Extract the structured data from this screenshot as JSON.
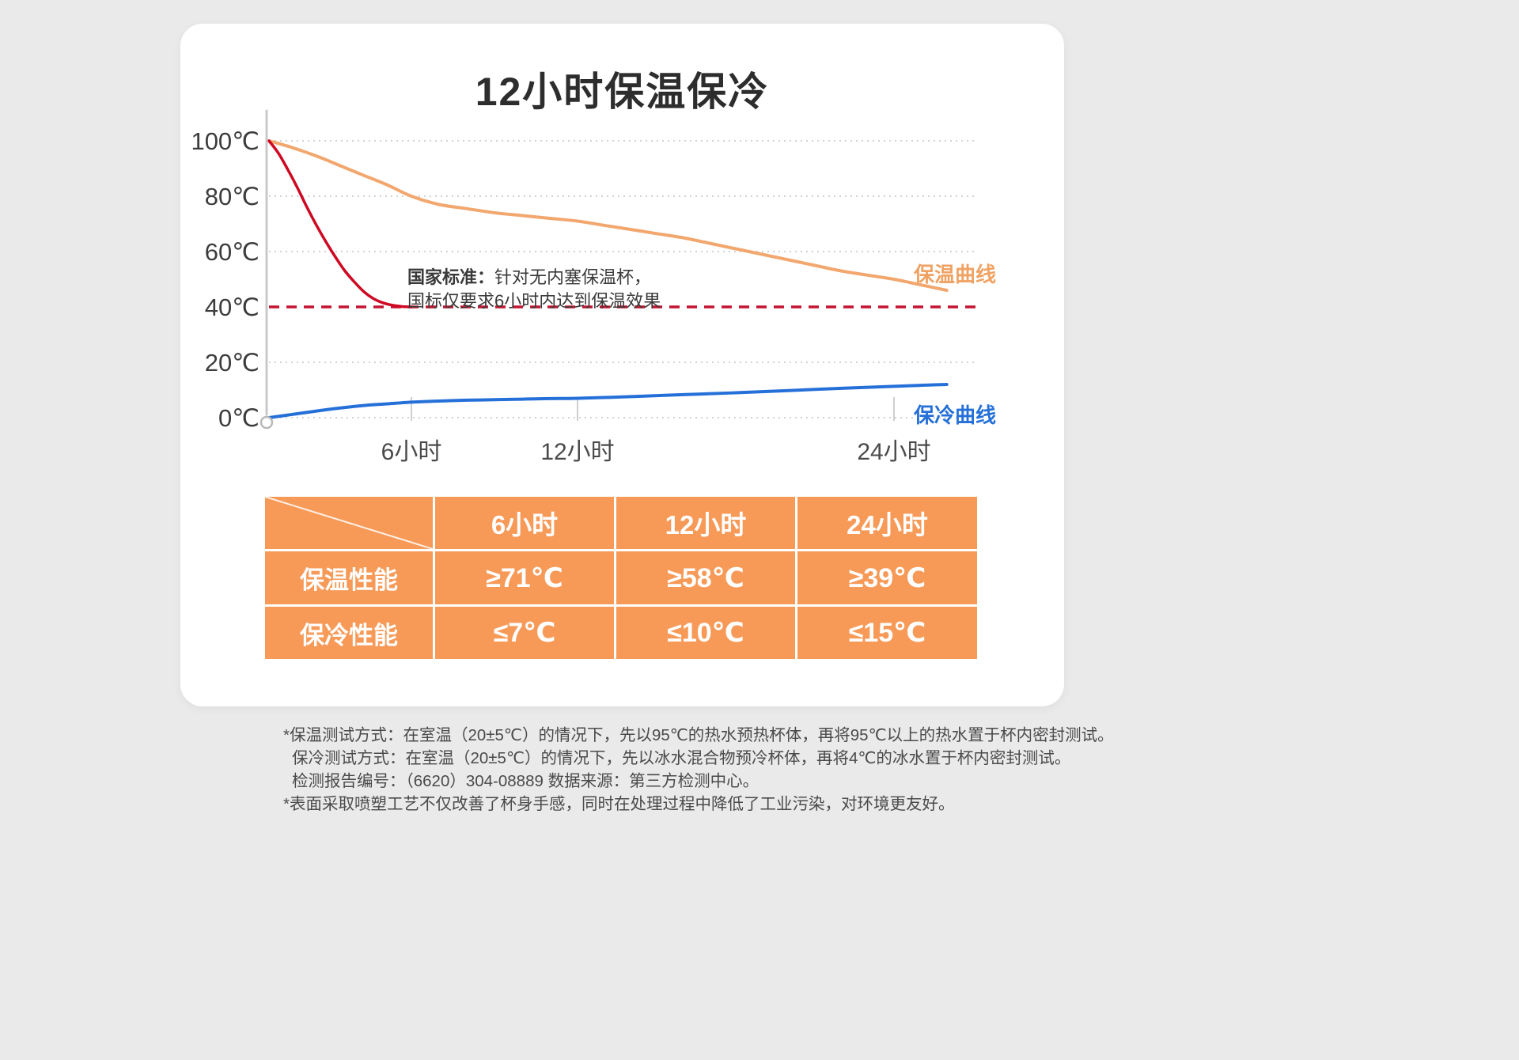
{
  "page": {
    "background_color": "#eaeaea",
    "card_color": "#ffffff"
  },
  "chart_data": {
    "type": "line",
    "title": "12小时保温保冷",
    "x_unit": "小时",
    "y_unit": "℃",
    "ylim": [
      0,
      100
    ],
    "grid": "dotted-horizontal",
    "legend_position": "right-inline",
    "y_ticks": [
      {
        "value": 0,
        "label": "0℃"
      },
      {
        "value": 20,
        "label": "20℃"
      },
      {
        "value": 40,
        "label": "40℃"
      },
      {
        "value": 60,
        "label": "60℃"
      },
      {
        "value": 80,
        "label": "80℃"
      },
      {
        "value": 100,
        "label": "100℃"
      }
    ],
    "x_ticks": [
      {
        "value": 6,
        "label": "6小时"
      },
      {
        "value": 12,
        "label": "12小时"
      },
      {
        "value": 24,
        "label": "24小时"
      }
    ],
    "reference_line": {
      "value": 40,
      "color": "#c41531",
      "style": "dashed"
    },
    "series": [
      {
        "id": "heat-retention-curve",
        "name": "保温曲线",
        "color": "#f2a76e",
        "label_color": "#f0a263",
        "width": 4,
        "points": [
          [
            0,
            100
          ],
          [
            1,
            97.5
          ],
          [
            2,
            94.5
          ],
          [
            3,
            91
          ],
          [
            4,
            87.5
          ],
          [
            5,
            84
          ],
          [
            6,
            80
          ],
          [
            7,
            77
          ],
          [
            8,
            75.5
          ],
          [
            9,
            74
          ],
          [
            10,
            73
          ],
          [
            11,
            72
          ],
          [
            12,
            71
          ],
          [
            13,
            69.5
          ],
          [
            14,
            68
          ],
          [
            15,
            66.5
          ],
          [
            16,
            65
          ],
          [
            17,
            63
          ],
          [
            18,
            61
          ],
          [
            19,
            59
          ],
          [
            20,
            57
          ],
          [
            21,
            55
          ],
          [
            22,
            53
          ],
          [
            23,
            51.5
          ],
          [
            24,
            50
          ],
          [
            25,
            48
          ],
          [
            26,
            46
          ]
        ]
      },
      {
        "id": "national-standard-curve",
        "name": "国家标准",
        "color": "#cf0722",
        "label_color": "#cf0722",
        "width": 3.5,
        "points": [
          [
            0,
            100
          ],
          [
            0.4,
            95.5
          ],
          [
            0.8,
            89.5
          ],
          [
            1.2,
            83
          ],
          [
            1.6,
            76
          ],
          [
            2,
            69.5
          ],
          [
            2.4,
            63.5
          ],
          [
            2.8,
            58
          ],
          [
            3.2,
            53
          ],
          [
            3.6,
            49
          ],
          [
            4,
            45.5
          ],
          [
            4.4,
            43
          ],
          [
            4.8,
            41.5
          ],
          [
            5.2,
            40.6
          ],
          [
            5.6,
            40.15
          ],
          [
            6,
            40
          ]
        ]
      },
      {
        "id": "cold-retention-curve",
        "name": "保冷曲线",
        "color": "#2570d8",
        "label_color": "#2570d8",
        "width": 4,
        "points": [
          [
            0,
            0
          ],
          [
            1,
            1.2
          ],
          [
            2,
            2.4
          ],
          [
            3,
            3.5
          ],
          [
            4,
            4.4
          ],
          [
            5,
            5
          ],
          [
            6,
            5.6
          ],
          [
            7,
            6
          ],
          [
            8,
            6.3
          ],
          [
            9,
            6.5
          ],
          [
            10,
            6.7
          ],
          [
            11,
            6.9
          ],
          [
            12,
            7
          ],
          [
            14,
            7.6
          ],
          [
            16,
            8.3
          ],
          [
            18,
            9
          ],
          [
            20,
            9.8
          ],
          [
            22,
            10.6
          ],
          [
            24,
            11.3
          ],
          [
            25,
            11.7
          ],
          [
            26,
            12
          ]
        ]
      }
    ],
    "annotation": {
      "bold": "国家标准：",
      "line1": "针对无内塞保温杯，",
      "line2": "国标仅要求6小时内达到保温效果"
    }
  },
  "table": {
    "accent_color": "#f79a58",
    "col_headers": [
      "6小时",
      "12小时",
      "24小时"
    ],
    "rows": [
      {
        "label": "保温性能",
        "values": [
          "≥71℃",
          "≥58℃",
          "≥39℃"
        ]
      },
      {
        "label": "保冷性能",
        "values": [
          "≤7℃",
          "≤10℃",
          "≤15℃"
        ]
      }
    ]
  },
  "footnotes": [
    "*保温测试方式：在室温（20±5℃）的情况下，先以95℃的热水预热杯体，再将95℃以上的热水置于杯内密封测试。",
    "保冷测试方式：在室温（20±5℃）的情况下，先以冰水混合物预冷杯体，再将4℃的冰水置于杯内密封测试。",
    "检测报告编号：（6620）304-08889 数据来源：第三方检测中心。",
    "*表面采取喷塑工艺不仅改善了杯身手感，同时在处理过程中降低了工业污染，对环境更友好。"
  ]
}
